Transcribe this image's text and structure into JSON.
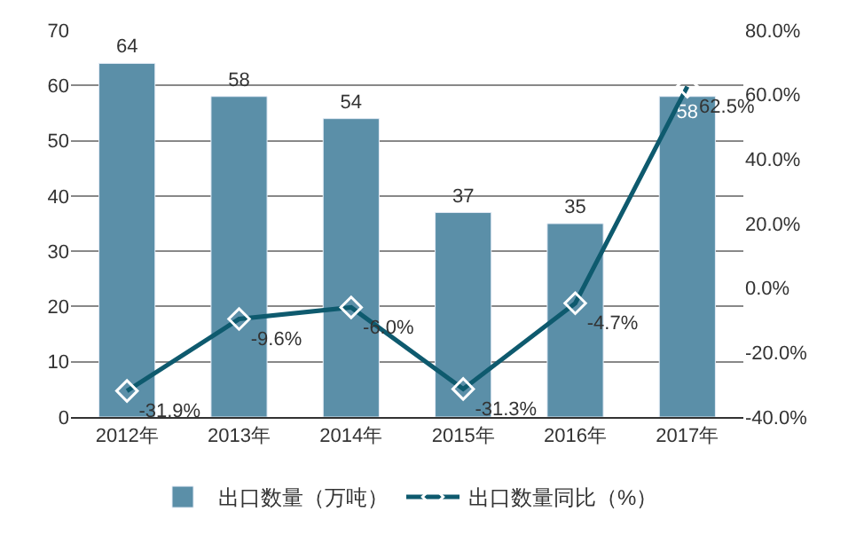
{
  "chart_data": {
    "type": "bar",
    "categories": [
      "2012年",
      "2013年",
      "2014年",
      "2015年",
      "2016年",
      "2017年"
    ],
    "series": [
      {
        "name": "出口数量（万吨）",
        "color": "#5b8fa8",
        "values": [
          64,
          58,
          54,
          37,
          35,
          58
        ],
        "value_labels": [
          "64",
          "58",
          "54",
          "37",
          "35",
          "58"
        ]
      },
      {
        "name": "出口数量同比（%）",
        "type": "line",
        "axis": "y2",
        "color": "#0e5a6e",
        "marker": "diamond",
        "values": [
          -31.9,
          -9.6,
          -6.0,
          -31.3,
          -4.7,
          62.5
        ],
        "value_labels": [
          "-31.9%",
          "-9.6%",
          "-6.0%",
          "-31.3%",
          "-4.7%",
          "62.5%"
        ]
      }
    ],
    "ylim": [
      0,
      70
    ],
    "yticks": [
      0,
      10,
      20,
      30,
      40,
      50,
      60,
      70
    ],
    "y2lim": [
      -40,
      80
    ],
    "y2ticks": [
      {
        "value": -40,
        "label": "-40.0%"
      },
      {
        "value": -20,
        "label": "-20.0%"
      },
      {
        "value": 0,
        "label": "0.0%"
      },
      {
        "value": 20,
        "label": "20.0%"
      },
      {
        "value": 40,
        "label": "40.0%"
      },
      {
        "value": 60,
        "label": "60.0%"
      },
      {
        "value": 80,
        "label": "80.0%"
      }
    ],
    "grid": "y",
    "legend": "bottom"
  }
}
